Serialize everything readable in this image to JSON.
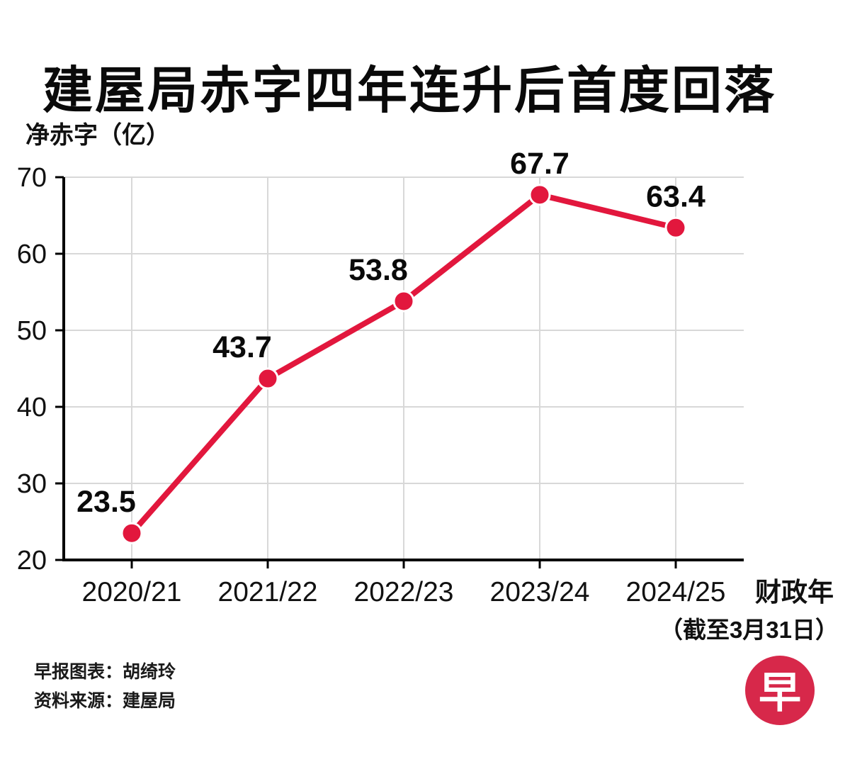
{
  "title": "建屋局赤字四年连升后首度回落",
  "y_axis_title": "净赤字（亿）",
  "x_axis_subtitle": "（截至3月31日）",
  "footer": {
    "credit": "早报图表：胡绮玲",
    "source": "资料来源：建屋局"
  },
  "logo": {
    "char": "早",
    "bg": "#d7284a"
  },
  "colors": {
    "accent": "#e2173d",
    "grid": "#d8d8d8",
    "axis": "#000000",
    "text": "#111111"
  },
  "chart_data": {
    "type": "line",
    "categories": [
      "2020/21",
      "2021/22",
      "2022/23",
      "2023/24",
      "2024/25"
    ],
    "values": [
      23.5,
      43.7,
      53.8,
      67.7,
      63.4
    ],
    "title": "建屋局赤字四年连升后首度回落",
    "xlabel": "财政年",
    "ylabel": "净赤字（亿）",
    "ylim": [
      20,
      70
    ],
    "yticks": [
      20,
      30,
      40,
      50,
      60,
      70
    ],
    "grid": true,
    "legend": "none",
    "line_color": "#e2173d",
    "marker": "circle"
  }
}
